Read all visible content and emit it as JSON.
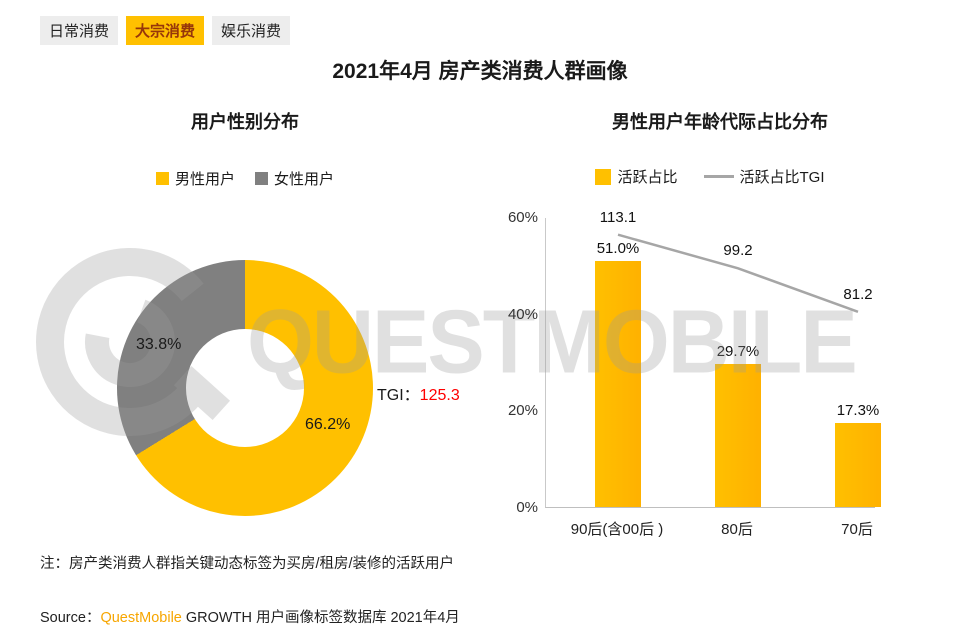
{
  "colors": {
    "yellow": "#FFC000",
    "gray": "#808080",
    "line_gray": "#A6A6A6",
    "tgi_red": "#FF0000",
    "brand_orange": "#F7A600"
  },
  "tabs": [
    {
      "label": "日常消费",
      "active": false
    },
    {
      "label": "大宗消费",
      "active": true
    },
    {
      "label": "娱乐消费",
      "active": false
    }
  ],
  "page_title": "2021年4月 房产类消费人群画像",
  "gender_chart": {
    "title": "用户性别分布",
    "legend": [
      {
        "label": "男性用户"
      },
      {
        "label": "女性用户"
      }
    ],
    "male_label": "66.2%",
    "female_label": "33.8%",
    "tgi_prefix": "TGI：",
    "tgi_value": "125.3"
  },
  "age_chart": {
    "title": "男性用户年龄代际占比分布",
    "legend_bar": "活跃占比",
    "legend_line": "活跃占比TGI",
    "y_ticks": [
      "60%",
      "40%",
      "20%",
      "0%"
    ],
    "categories": [
      "90后(含00后 )",
      "80后",
      "70后"
    ],
    "bar_labels": [
      "51.0%",
      "29.7%",
      "17.3%"
    ],
    "tgi_labels": [
      "113.1",
      "99.2",
      "81.2"
    ]
  },
  "note": "注：房产类消费人群指关键动态标签为买房/租房/装修的活跃用户",
  "source": {
    "prefix": "Source：",
    "brand": "QuestMobile",
    "rest": " GROWTH 用户画像标签数据库 2021年4月"
  },
  "watermark_text": "QUESTMOBILE",
  "chart_data": [
    {
      "type": "pie",
      "donut": true,
      "title": "用户性别分布",
      "labels": [
        "男性用户",
        "女性用户"
      ],
      "values": [
        66.2,
        33.8
      ],
      "colors": [
        "#FFC000",
        "#808080"
      ],
      "annotation": "TGI：125.3",
      "tgi": 125.3,
      "legend_position": "top"
    },
    {
      "type": "bar",
      "title": "男性用户年龄代际占比分布",
      "categories": [
        "90后(含00后 )",
        "80后",
        "70后"
      ],
      "series": [
        {
          "name": "活跃占比",
          "type": "bar",
          "unit": "%",
          "values": [
            51.0,
            29.7,
            17.3
          ]
        },
        {
          "name": "活跃占比TGI",
          "type": "line",
          "axis": "secondary",
          "values": [
            113.1,
            99.2,
            81.2
          ]
        }
      ],
      "ylim": [
        0,
        60
      ],
      "secondary_ylim": [
        0,
        120
      ],
      "y_ticks": [
        "0%",
        "20%",
        "40%",
        "60%"
      ],
      "legend_position": "top",
      "grid": false
    }
  ]
}
